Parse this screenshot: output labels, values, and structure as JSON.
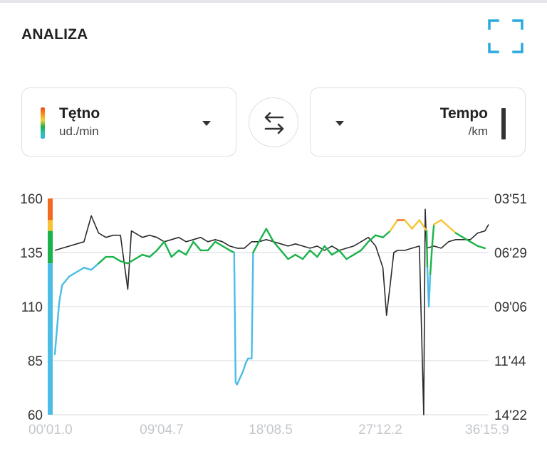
{
  "header": {
    "title": "ANALIZA",
    "expand_icon": "fullscreen-icon"
  },
  "left_metric": {
    "name": "Tętno",
    "unit": "ud./min",
    "colors": [
      "#f04a1a",
      "#f6d23a",
      "#1db04a",
      "#38b6e3"
    ]
  },
  "swap_icon": "swap-arrows-icon",
  "right_metric": {
    "name": "Tempo",
    "unit": "/km",
    "color": "#333333"
  },
  "chart_data": {
    "type": "line",
    "x_tick_labels": [
      "00'01.0",
      "09'04.7",
      "18'08.5",
      "27'12.2",
      "36'15.9"
    ],
    "y_left": {
      "label": "Tętno",
      "tick_labels": [
        "160",
        "135",
        "110",
        "85",
        "60"
      ],
      "range": [
        60,
        160
      ]
    },
    "y_right": {
      "label": "Tempo",
      "tick_labels": [
        "03'51",
        "06'29",
        "09'06",
        "11'44",
        "14'22"
      ]
    },
    "grid": true,
    "series": [
      {
        "name": "Tętno",
        "zone_colors": {
          "blue": "#4bbde6",
          "green": "#1ab34b",
          "yellow": "#f6c433",
          "orange": "#f26a1f"
        },
        "points": [
          [
            0,
            88
          ],
          [
            0.3,
            100
          ],
          [
            0.6,
            112
          ],
          [
            1,
            120
          ],
          [
            1.5,
            122
          ],
          [
            2,
            124
          ],
          [
            3,
            126
          ],
          [
            4,
            128
          ],
          [
            5,
            127
          ],
          [
            6,
            130
          ],
          [
            7,
            133
          ],
          [
            8,
            133
          ],
          [
            9,
            131
          ],
          [
            10,
            130
          ],
          [
            11,
            132
          ],
          [
            12,
            134
          ],
          [
            13,
            133
          ],
          [
            14,
            136
          ],
          [
            15,
            140
          ],
          [
            16,
            133
          ],
          [
            17,
            136
          ],
          [
            18,
            134
          ],
          [
            19,
            140
          ],
          [
            20,
            136
          ],
          [
            21,
            136
          ],
          [
            22,
            140
          ],
          [
            23,
            138
          ],
          [
            24,
            136
          ],
          [
            24.6,
            135
          ],
          [
            24.8,
            75
          ],
          [
            25,
            74
          ],
          [
            25.8,
            80
          ],
          [
            26,
            82
          ],
          [
            26.2,
            84
          ],
          [
            26.5,
            86
          ],
          [
            27,
            86
          ],
          [
            27.2,
            135
          ],
          [
            28,
            140
          ],
          [
            29,
            146
          ],
          [
            30,
            140
          ],
          [
            31,
            136
          ],
          [
            32,
            132
          ],
          [
            33,
            134
          ],
          [
            34,
            132
          ],
          [
            35,
            136
          ],
          [
            36,
            133
          ],
          [
            37,
            138
          ],
          [
            38,
            134
          ],
          [
            39,
            136
          ],
          [
            40,
            132
          ],
          [
            41,
            134
          ],
          [
            42,
            136
          ],
          [
            43,
            140
          ],
          [
            44,
            143
          ],
          [
            45,
            142
          ],
          [
            46,
            145
          ],
          [
            47,
            150
          ],
          [
            48,
            150
          ],
          [
            49,
            146
          ],
          [
            50,
            150
          ],
          [
            51,
            145
          ],
          [
            51.1,
            128
          ],
          [
            51.3,
            110
          ],
          [
            51.5,
            125
          ],
          [
            51.8,
            140
          ],
          [
            52,
            148
          ],
          [
            53,
            150
          ],
          [
            54,
            147
          ],
          [
            55,
            144
          ],
          [
            56,
            142
          ],
          [
            57,
            140
          ],
          [
            58,
            138
          ],
          [
            59,
            137
          ]
        ]
      },
      {
        "name": "Tempo",
        "points": [
          [
            0,
            136
          ],
          [
            1,
            137
          ],
          [
            2,
            138
          ],
          [
            3,
            139
          ],
          [
            4,
            140
          ],
          [
            5,
            152
          ],
          [
            6,
            144
          ],
          [
            7,
            142
          ],
          [
            8,
            143
          ],
          [
            9,
            143
          ],
          [
            10,
            118
          ],
          [
            10.5,
            145
          ],
          [
            11,
            144
          ],
          [
            12,
            142
          ],
          [
            13,
            143
          ],
          [
            14,
            142
          ],
          [
            15,
            140
          ],
          [
            16,
            141
          ],
          [
            17,
            142
          ],
          [
            18,
            140
          ],
          [
            19,
            141
          ],
          [
            20,
            142
          ],
          [
            21,
            140
          ],
          [
            22,
            141
          ],
          [
            23,
            140
          ],
          [
            24,
            138
          ],
          [
            25,
            137
          ],
          [
            26,
            137
          ],
          [
            27,
            140
          ],
          [
            28,
            140
          ],
          [
            29,
            141
          ],
          [
            30,
            140
          ],
          [
            31,
            139
          ],
          [
            32,
            138
          ],
          [
            33,
            139
          ],
          [
            34,
            138
          ],
          [
            35,
            137
          ],
          [
            36,
            138
          ],
          [
            37,
            136
          ],
          [
            38,
            138
          ],
          [
            39,
            136
          ],
          [
            40,
            137
          ],
          [
            41,
            138
          ],
          [
            42,
            140
          ],
          [
            43,
            142
          ],
          [
            44,
            138
          ],
          [
            45,
            128
          ],
          [
            45.5,
            106
          ],
          [
            46,
            120
          ],
          [
            46.5,
            135
          ],
          [
            47,
            136
          ],
          [
            48,
            136
          ],
          [
            49,
            137
          ],
          [
            50,
            138
          ],
          [
            50.6,
            60
          ],
          [
            50.8,
            155
          ],
          [
            51,
            137
          ],
          [
            52,
            138
          ],
          [
            53,
            137
          ],
          [
            54,
            140
          ],
          [
            55,
            141
          ],
          [
            56,
            141
          ],
          [
            57,
            141
          ],
          [
            58,
            144
          ],
          [
            59,
            145
          ],
          [
            59.5,
            148
          ]
        ]
      }
    ]
  }
}
